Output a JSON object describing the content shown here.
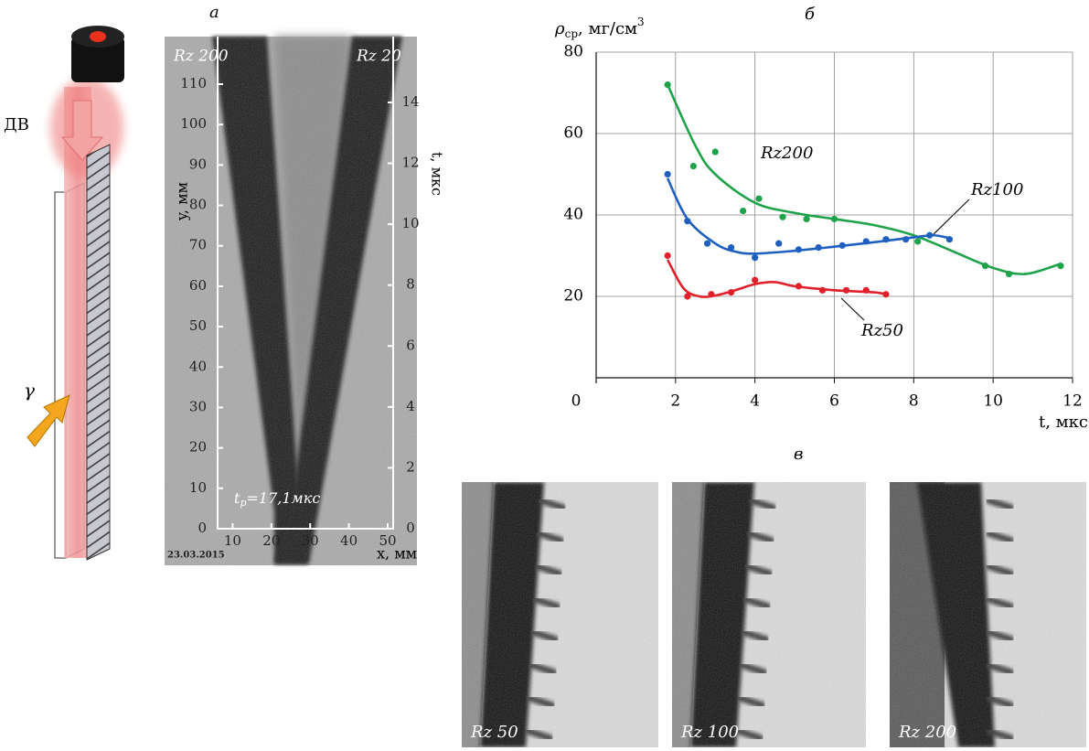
{
  "chart_data": [
    {
      "type": "image",
      "title": "а",
      "xlabel": "x, мм",
      "ylabel": "y, мм",
      "y2label": "t, мкс",
      "xlim": [
        0,
        50
      ],
      "ylim": [
        0,
        110
      ],
      "y2lim": [
        0,
        14.6
      ],
      "xticks": [
        10,
        20,
        30,
        40,
        50
      ],
      "yticks": [
        0,
        10,
        20,
        30,
        40,
        50,
        60,
        70,
        80,
        90,
        100,
        110
      ],
      "y2ticks": [
        0,
        2,
        4,
        6,
        8,
        10,
        12,
        14
      ],
      "annotations": [
        "Rz 200",
        "Rz 20",
        "23.03.2015"
      ],
      "time_label": [
        "t",
        "р",
        "=17,1мкс"
      ]
    },
    {
      "type": "line",
      "title": "б",
      "ylabel": [
        "ρ",
        "ср",
        ", мг/см",
        "3"
      ],
      "xlabel": "t, мкс",
      "xlim": [
        0,
        12
      ],
      "ylim": [
        0,
        80
      ],
      "xticks": [
        0,
        2,
        4,
        6,
        8,
        10,
        12
      ],
      "yticks": [
        20,
        40,
        60,
        80
      ],
      "grid": true,
      "series": [
        {
          "name": "Rz200",
          "color": "#1fa34a",
          "x": [
            1.8,
            2.45,
            3.0,
            3.7,
            4.1,
            4.7,
            5.3,
            6.0,
            8.1,
            9.8,
            10.4,
            11.7
          ],
          "y": [
            72,
            52,
            55.5,
            41,
            44,
            39.5,
            39,
            39,
            33.5,
            27.5,
            25.5,
            27.5
          ],
          "curve": {
            "x": [
              1.8,
              2.5,
              3,
              4,
              5,
              6,
              7,
              8,
              9,
              10,
              10.8,
              11.7
            ],
            "y": [
              72,
              57,
              50,
              43,
              40.5,
              39,
              37.5,
              35,
              31,
              27,
              25.5,
              28
            ]
          }
        },
        {
          "name": "Rz100",
          "color": "#1f5fbf",
          "x": [
            1.8,
            2.3,
            2.8,
            3.4,
            4.0,
            4.6,
            5.1,
            5.6,
            6.2,
            6.8,
            7.3,
            7.8,
            8.4,
            8.9
          ],
          "y": [
            50,
            38.5,
            33,
            32,
            29.5,
            33,
            31.5,
            32,
            32.5,
            33.5,
            34,
            34,
            35,
            34
          ],
          "curve": {
            "x": [
              1.8,
              2.3,
              3,
              3.5,
              4,
              5,
              6,
              7,
              8,
              8.5,
              8.9
            ],
            "y": [
              49,
              39,
              33,
              31,
              30.5,
              31.2,
              32.2,
              33.3,
              34.5,
              35,
              34.3
            ]
          }
        },
        {
          "name": "Rz50",
          "color": "#e0202a",
          "x": [
            1.8,
            2.3,
            2.9,
            3.4,
            4.0,
            5.1,
            5.7,
            6.3,
            6.8,
            7.3
          ],
          "y": [
            30,
            20,
            20.5,
            21,
            24,
            22.5,
            21.5,
            21.5,
            21.5,
            20.5
          ],
          "curve": {
            "x": [
              1.8,
              2.2,
              2.6,
              3,
              3.5,
              4,
              4.5,
              5,
              6,
              7,
              7.3
            ],
            "y": [
              29,
              22,
              20,
              20.2,
              21.5,
              23,
              23.5,
              22.5,
              21.5,
              21,
              20.5
            ]
          }
        }
      ]
    }
  ],
  "figure": {
    "diagram_labels": [
      "ДВ",
      "γ"
    ],
    "panel_c": {
      "title": "в",
      "images": [
        "Rz 50",
        "Rz 100",
        "Rz 200"
      ]
    }
  }
}
